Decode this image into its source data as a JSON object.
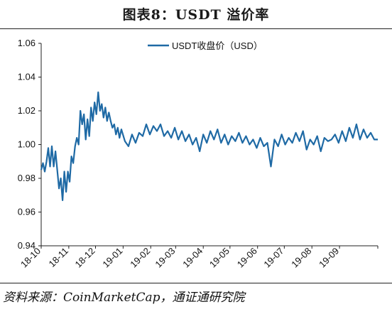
{
  "header": {
    "title": "图表8：USDT 溢价率"
  },
  "footer": {
    "source": "资料来源：CoinMarketCap，通证通研究院"
  },
  "colors": {
    "series": "#1f6aa5",
    "axis": "#222222"
  },
  "chart_data": {
    "type": "line",
    "title": "图表8：USDT 溢价率",
    "xlabel": "",
    "ylabel": "",
    "ylim": [
      0.94,
      1.06
    ],
    "yticks": [
      "0.94",
      "0.96",
      "0.98",
      "1.00",
      "1.02",
      "1.04",
      "1.06"
    ],
    "xticks": [
      "18-10",
      "18-11",
      "18-12",
      "19-01",
      "19-02",
      "19-03",
      "19-04",
      "19-05",
      "19-06",
      "19-07",
      "19-08",
      "19-09"
    ],
    "legend": "top-right",
    "grid": false,
    "series": [
      {
        "name": "USDT收盘价（USD）",
        "x": [
          "2018-10-01",
          "2018-10-03",
          "2018-10-05",
          "2018-10-07",
          "2018-10-09",
          "2018-10-11",
          "2018-10-13",
          "2018-10-15",
          "2018-10-17",
          "2018-10-19",
          "2018-10-21",
          "2018-10-23",
          "2018-10-25",
          "2018-10-27",
          "2018-10-29",
          "2018-10-31",
          "2018-11-02",
          "2018-11-04",
          "2018-11-06",
          "2018-11-08",
          "2018-11-10",
          "2018-11-12",
          "2018-11-14",
          "2018-11-16",
          "2018-11-18",
          "2018-11-20",
          "2018-11-22",
          "2018-11-24",
          "2018-11-26",
          "2018-11-28",
          "2018-11-30",
          "2018-12-02",
          "2018-12-04",
          "2018-12-06",
          "2018-12-08",
          "2018-12-10",
          "2018-12-12",
          "2018-12-14",
          "2018-12-16",
          "2018-12-18",
          "2018-12-20",
          "2018-12-22",
          "2018-12-24",
          "2018-12-26",
          "2018-12-28",
          "2018-12-30",
          "2019-01-03",
          "2019-01-07",
          "2019-01-11",
          "2019-01-15",
          "2019-01-19",
          "2019-01-23",
          "2019-01-27",
          "2019-01-31",
          "2019-02-04",
          "2019-02-08",
          "2019-02-12",
          "2019-02-16",
          "2019-02-20",
          "2019-02-24",
          "2019-02-28",
          "2019-03-04",
          "2019-03-08",
          "2019-03-12",
          "2019-03-16",
          "2019-03-20",
          "2019-03-24",
          "2019-03-28",
          "2019-04-01",
          "2019-04-05",
          "2019-04-09",
          "2019-04-13",
          "2019-04-17",
          "2019-04-21",
          "2019-04-25",
          "2019-04-29",
          "2019-05-03",
          "2019-05-07",
          "2019-05-11",
          "2019-05-15",
          "2019-05-19",
          "2019-05-23",
          "2019-05-27",
          "2019-05-31",
          "2019-06-04",
          "2019-06-08",
          "2019-06-12",
          "2019-06-16",
          "2019-06-20",
          "2019-06-24",
          "2019-06-28",
          "2019-07-02",
          "2019-07-06",
          "2019-07-10",
          "2019-07-14",
          "2019-07-18",
          "2019-07-22",
          "2019-07-26",
          "2019-07-30",
          "2019-08-03",
          "2019-08-07",
          "2019-08-11",
          "2019-08-15",
          "2019-08-19",
          "2019-08-23",
          "2019-08-27",
          "2019-08-31",
          "2019-09-04",
          "2019-09-08",
          "2019-09-12",
          "2019-09-16",
          "2019-09-20",
          "2019-09-24",
          "2019-09-28",
          "2019-10-02",
          "2019-10-06",
          "2019-10-10",
          "2019-10-14"
        ],
        "values": [
          0.985,
          0.989,
          0.984,
          0.99,
          0.998,
          0.987,
          0.999,
          0.987,
          0.996,
          0.985,
          0.974,
          0.98,
          0.967,
          0.984,
          0.972,
          0.984,
          0.978,
          0.993,
          0.989,
          0.999,
          1.004,
          1.0,
          1.02,
          1.012,
          1.018,
          1.003,
          1.015,
          1.005,
          1.022,
          1.014,
          1.025,
          1.018,
          1.031,
          1.02,
          1.024,
          1.016,
          1.022,
          1.014,
          1.019,
          1.014,
          1.01,
          1.012,
          1.006,
          1.01,
          1.004,
          1.009,
          1.002,
          0.999,
          1.006,
          1.001,
          1.007,
          1.005,
          1.012,
          1.006,
          1.011,
          1.008,
          1.012,
          1.005,
          1.008,
          1.004,
          1.01,
          1.003,
          1.008,
          1.002,
          1.006,
          1.0,
          1.004,
          0.996,
          1.006,
          1.001,
          1.008,
          1.003,
          1.009,
          1.001,
          1.006,
          1.0,
          1.005,
          1.002,
          1.007,
          1.001,
          1.005,
          1.0,
          1.003,
          0.998,
          1.004,
          0.999,
          1.001,
          0.987,
          1.003,
          0.999,
          1.006,
          1.0,
          1.004,
          1.001,
          1.007,
          1.002,
          1.008,
          0.997,
          1.003,
          1.0,
          1.005,
          0.996,
          1.004,
          1.002,
          1.003,
          1.006,
          1.001,
          1.008,
          1.002,
          1.01,
          1.004,
          1.012,
          1.003,
          1.009,
          1.004,
          1.007,
          1.003,
          1.003
        ]
      }
    ]
  }
}
